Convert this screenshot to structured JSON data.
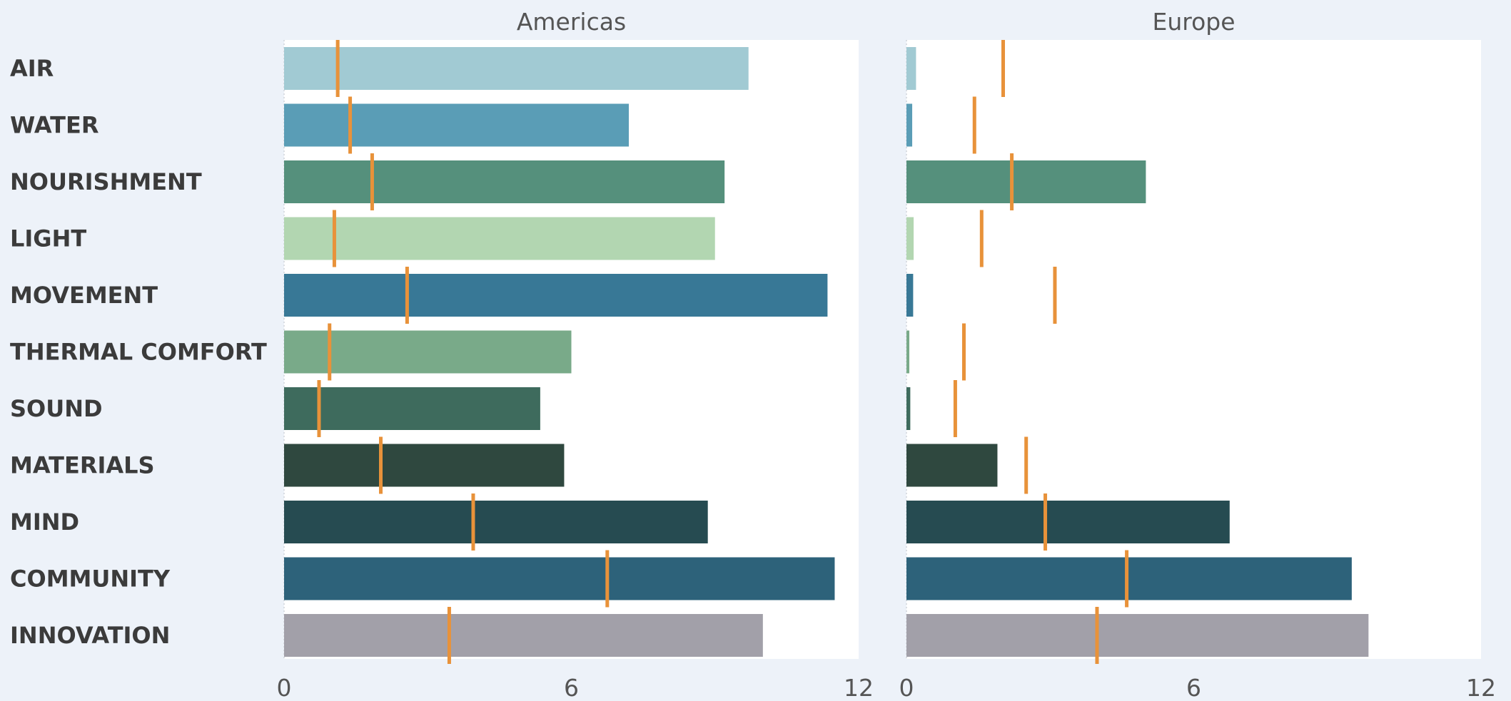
{
  "chart_data": {
    "type": "bar",
    "orientation": "horizontal",
    "categories": [
      "AIR",
      "WATER",
      "NOURISHMENT",
      "LIGHT",
      "MOVEMENT",
      "THERMAL COMFORT",
      "SOUND",
      "MATERIALS",
      "MIND",
      "COMMUNITY",
      "INNOVATION"
    ],
    "category_colors": [
      "#a1cad3",
      "#5a9db6",
      "#55907c",
      "#b2d6b1",
      "#387896",
      "#79aa89",
      "#3e6b5d",
      "#2f483f",
      "#264b51",
      "#2d627a",
      "#a2a0a9"
    ],
    "marker_color": "#e8923a",
    "xlim": [
      0,
      12
    ],
    "xticks": [
      0,
      6,
      12
    ],
    "panels": [
      {
        "title": "Americas",
        "bar_values": [
          9.7,
          7.2,
          9.2,
          9.0,
          11.35,
          6.0,
          5.35,
          5.85,
          8.85,
          11.5,
          10.0
        ],
        "marker_values": [
          1.12,
          1.38,
          1.84,
          1.05,
          2.57,
          0.95,
          0.73,
          2.02,
          3.95,
          6.75,
          3.45
        ]
      },
      {
        "title": "Europe",
        "bar_values": [
          0.2,
          0.12,
          5.0,
          0.15,
          0.14,
          0.06,
          0.08,
          1.9,
          6.75,
          9.3,
          9.65
        ],
        "marker_values": [
          2.02,
          1.42,
          2.2,
          1.57,
          3.1,
          1.2,
          1.02,
          2.5,
          2.9,
          4.6,
          3.98
        ]
      }
    ]
  }
}
